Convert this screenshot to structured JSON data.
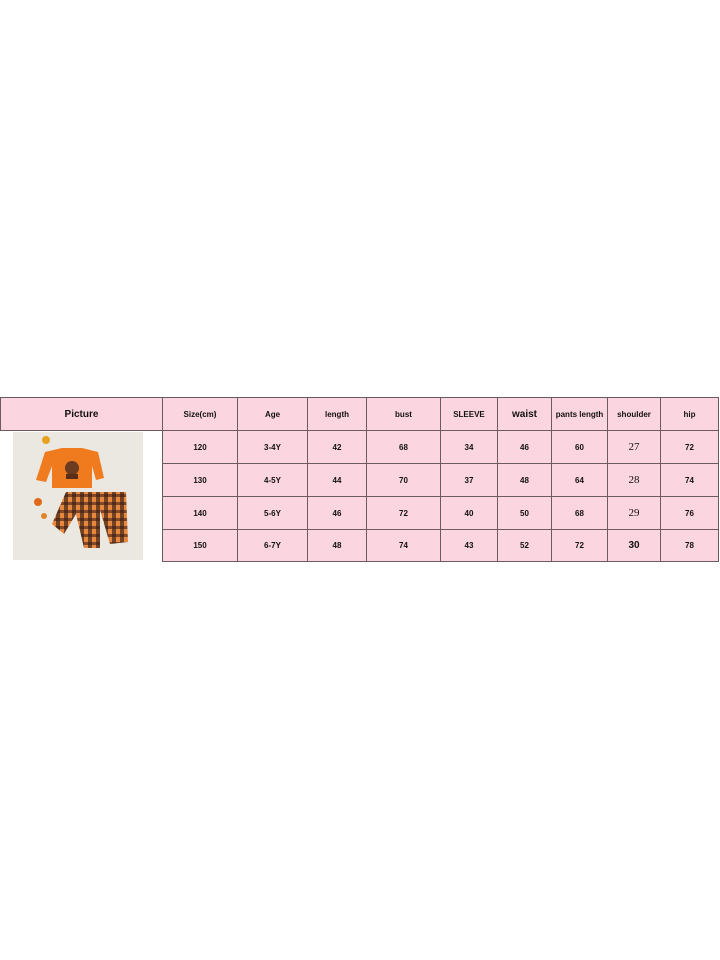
{
  "table": {
    "header": [
      "Picture",
      "Size(cm)",
      "Age",
      "length",
      "bust",
      "SLEEVE",
      "waist",
      "pants length",
      "shoulder",
      "hip"
    ],
    "rows": [
      [
        120,
        "3-4Y",
        42,
        68,
        34,
        46,
        60,
        27,
        72
      ],
      [
        130,
        "4-5Y",
        44,
        70,
        37,
        48,
        64,
        28,
        74
      ],
      [
        140,
        "5-6Y",
        46,
        72,
        40,
        50,
        68,
        29,
        76
      ],
      [
        150,
        "6-7Y",
        48,
        74,
        43,
        52,
        72,
        30,
        78
      ]
    ]
  }
}
